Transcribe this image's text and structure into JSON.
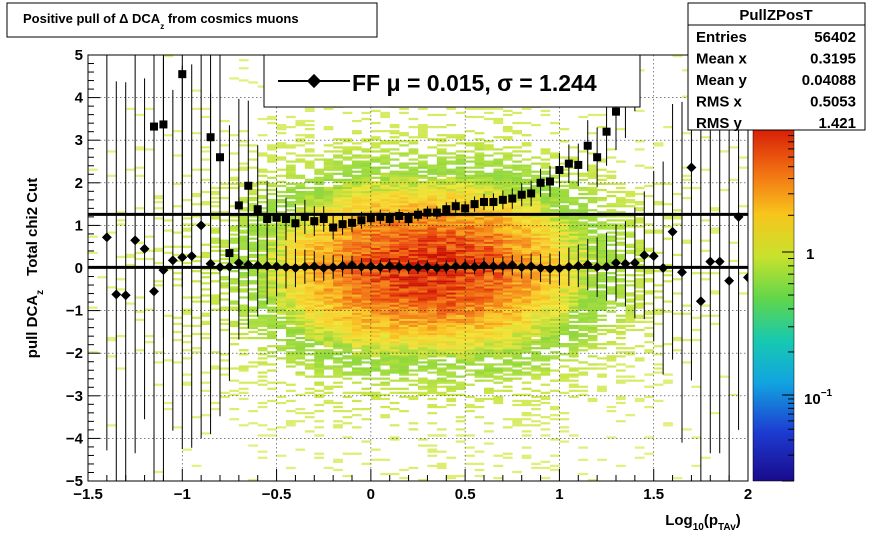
{
  "title": {
    "pre": "Positive pull of ",
    "delta": "Δ",
    "mid": " DCA",
    "sub": "z",
    "post": " from cosmics muons"
  },
  "stats": {
    "name": "PullZPosT",
    "rows": [
      {
        "label": "Entries",
        "value": "56402"
      },
      {
        "label": "Mean x",
        "value": "0.3195"
      },
      {
        "label": "Mean y",
        "value": "0.04088"
      },
      {
        "label": "RMS x",
        "value": "0.5053"
      },
      {
        "label": "RMS y",
        "value": "1.421"
      }
    ]
  },
  "legend": {
    "entry_text": "FF μ =  0.015, σ =   1.244"
  },
  "chart_data": {
    "type": "heatmap",
    "x_axis": {
      "range": [
        -1.5,
        2.0
      ],
      "ticks": [
        -1.5,
        -1,
        -0.5,
        0,
        0.5,
        1,
        1.5,
        2
      ],
      "tick_labels": [
        "−1.5",
        "−1",
        "−0.5",
        "0",
        "0.5",
        "1",
        "1.5",
        "2"
      ],
      "label_main": "Log",
      "label_sub1": "10",
      "label_paren": "(p",
      "label_sub2": "TAv",
      "label_end": ")"
    },
    "y_axis": {
      "range": [
        -5,
        5
      ],
      "ticks": [
        -5,
        -4,
        -3,
        -2,
        -1,
        0,
        1,
        2,
        3,
        4,
        5
      ],
      "tick_labels": [
        "−5",
        "−4",
        "−3",
        "−2",
        "−1",
        "0",
        "1",
        "2",
        "3",
        "4",
        "5"
      ],
      "label_main": "pull DCA",
      "label_sub": "z",
      "label_right": "Total chi2 Cut"
    },
    "color_scale": {
      "type": "log",
      "tick_labels": [
        {
          "base": "1",
          "exp": ""
        },
        {
          "base": "10",
          "exp": "−1"
        }
      ]
    },
    "grid": true,
    "series": [
      {
        "marker": "diamond",
        "points": [
          [
            -1.4,
            0.72,
            5.0
          ],
          [
            -1.35,
            -0.62,
            5.0
          ],
          [
            -1.3,
            -0.64,
            5.0
          ],
          [
            -1.25,
            0.65,
            5.0
          ],
          [
            -1.2,
            0.45,
            4.0
          ],
          [
            -1.15,
            -0.55,
            5.0
          ],
          [
            -1.1,
            -0.05,
            5.0
          ],
          [
            -1.05,
            0.18,
            4.0
          ],
          [
            -1.0,
            0.25,
            4.5
          ],
          [
            -0.95,
            0.28,
            4.5
          ],
          [
            -0.9,
            1.0,
            5.0
          ],
          [
            -0.85,
            0.1,
            4.0
          ],
          [
            -0.8,
            0.02,
            3.5
          ],
          [
            -0.75,
            0.03,
            2.5
          ],
          [
            -0.7,
            0.12,
            1.8
          ],
          [
            -0.65,
            0.08,
            1.5
          ],
          [
            -0.6,
            0.06,
            1.2
          ],
          [
            -0.55,
            0.05,
            0.9
          ],
          [
            -0.5,
            0.04,
            0.7
          ],
          [
            -0.45,
            0.02,
            0.5
          ],
          [
            -0.4,
            0.0,
            0.45
          ],
          [
            -0.35,
            0.03,
            0.4
          ],
          [
            -0.3,
            0.04,
            0.35
          ],
          [
            -0.25,
            0.0,
            0.3
          ],
          [
            -0.2,
            0.02,
            0.28
          ],
          [
            -0.15,
            0.05,
            0.25
          ],
          [
            -0.1,
            0.07,
            0.22
          ],
          [
            -0.05,
            0.03,
            0.2
          ],
          [
            0.0,
            0.04,
            0.18
          ],
          [
            0.05,
            0.02,
            0.17
          ],
          [
            0.1,
            0.05,
            0.16
          ],
          [
            0.15,
            0.03,
            0.16
          ],
          [
            0.2,
            0.02,
            0.16
          ],
          [
            0.25,
            0.01,
            0.15
          ],
          [
            0.3,
            0.03,
            0.15
          ],
          [
            0.35,
            0.0,
            0.15
          ],
          [
            0.4,
            0.02,
            0.16
          ],
          [
            0.45,
            0.04,
            0.16
          ],
          [
            0.5,
            0.05,
            0.17
          ],
          [
            0.55,
            0.03,
            0.18
          ],
          [
            0.6,
            0.06,
            0.19
          ],
          [
            0.65,
            0.04,
            0.2
          ],
          [
            0.7,
            0.05,
            0.22
          ],
          [
            0.75,
            0.07,
            0.24
          ],
          [
            0.8,
            0.02,
            0.27
          ],
          [
            0.85,
            0.04,
            0.3
          ],
          [
            0.9,
            0.0,
            0.33
          ],
          [
            0.95,
            -0.02,
            0.36
          ],
          [
            1.0,
            -0.01,
            0.4
          ],
          [
            1.05,
            0.03,
            0.45
          ],
          [
            1.1,
            0.05,
            0.5
          ],
          [
            1.15,
            0.08,
            0.6
          ],
          [
            1.2,
            0.02,
            0.7
          ],
          [
            1.25,
            0.03,
            0.8
          ],
          [
            1.3,
            0.12,
            0.9
          ],
          [
            1.35,
            0.1,
            1.0
          ],
          [
            1.4,
            0.12,
            1.3
          ],
          [
            1.45,
            0.3,
            1.5
          ],
          [
            1.5,
            0.28,
            2.0
          ],
          [
            1.55,
            0.0,
            2.5
          ],
          [
            1.6,
            0.85,
            3.0
          ],
          [
            1.65,
            -0.1,
            4.0
          ],
          [
            1.7,
            2.36,
            5.0
          ],
          [
            1.75,
            -0.78,
            4.5
          ],
          [
            1.8,
            0.15,
            4.5
          ],
          [
            1.85,
            0.15,
            4.5
          ],
          [
            1.9,
            -0.3,
            5.0
          ],
          [
            1.95,
            1.2,
            5.0
          ],
          [
            2.0,
            -0.22,
            5.0
          ]
        ]
      },
      {
        "marker": "square",
        "points": [
          [
            -1.15,
            3.32,
            5.0
          ],
          [
            -1.1,
            3.37,
            5.0
          ],
          [
            -1.0,
            4.55,
            5.0
          ],
          [
            -0.85,
            3.07,
            5.0
          ],
          [
            -0.8,
            2.6,
            4.0
          ],
          [
            -0.75,
            0.35,
            3.0
          ],
          [
            -0.7,
            1.47,
            2.5
          ],
          [
            -0.65,
            1.93,
            2.0
          ],
          [
            -0.6,
            1.38,
            1.5
          ],
          [
            -0.55,
            1.15,
            0.9
          ],
          [
            -0.5,
            1.18,
            0.7
          ],
          [
            -0.45,
            1.15,
            0.5
          ],
          [
            -0.4,
            1.05,
            0.45
          ],
          [
            -0.35,
            1.2,
            0.4
          ],
          [
            -0.3,
            1.1,
            0.35
          ],
          [
            -0.25,
            1.15,
            0.3
          ],
          [
            -0.2,
            0.95,
            0.28
          ],
          [
            -0.15,
            1.03,
            0.25
          ],
          [
            -0.1,
            1.06,
            0.22
          ],
          [
            -0.05,
            1.12,
            0.2
          ],
          [
            0.0,
            1.17,
            0.18
          ],
          [
            0.05,
            1.2,
            0.17
          ],
          [
            0.1,
            1.15,
            0.16
          ],
          [
            0.15,
            1.22,
            0.16
          ],
          [
            0.2,
            1.15,
            0.16
          ],
          [
            0.25,
            1.25,
            0.15
          ],
          [
            0.3,
            1.3,
            0.15
          ],
          [
            0.35,
            1.3,
            0.15
          ],
          [
            0.4,
            1.38,
            0.16
          ],
          [
            0.45,
            1.45,
            0.16
          ],
          [
            0.5,
            1.4,
            0.17
          ],
          [
            0.55,
            1.5,
            0.18
          ],
          [
            0.6,
            1.55,
            0.19
          ],
          [
            0.65,
            1.55,
            0.2
          ],
          [
            0.7,
            1.6,
            0.22
          ],
          [
            0.75,
            1.63,
            0.24
          ],
          [
            0.8,
            1.72,
            0.27
          ],
          [
            0.85,
            1.75,
            0.3
          ],
          [
            0.9,
            2.0,
            0.33
          ],
          [
            0.95,
            2.03,
            0.36
          ],
          [
            1.0,
            2.3,
            0.4
          ],
          [
            1.05,
            2.45,
            0.45
          ],
          [
            1.1,
            2.42,
            0.5
          ],
          [
            1.15,
            2.87,
            0.6
          ],
          [
            1.2,
            2.6,
            0.7
          ],
          [
            1.25,
            3.2,
            0.8
          ],
          [
            1.3,
            3.67,
            0.9
          ],
          [
            1.35,
            4.05,
            1.0
          ],
          [
            1.4,
            4.98,
            1.3
          ]
        ]
      }
    ],
    "fit_lines": [
      {
        "y": 0.015
      },
      {
        "y": 1.259
      }
    ]
  }
}
